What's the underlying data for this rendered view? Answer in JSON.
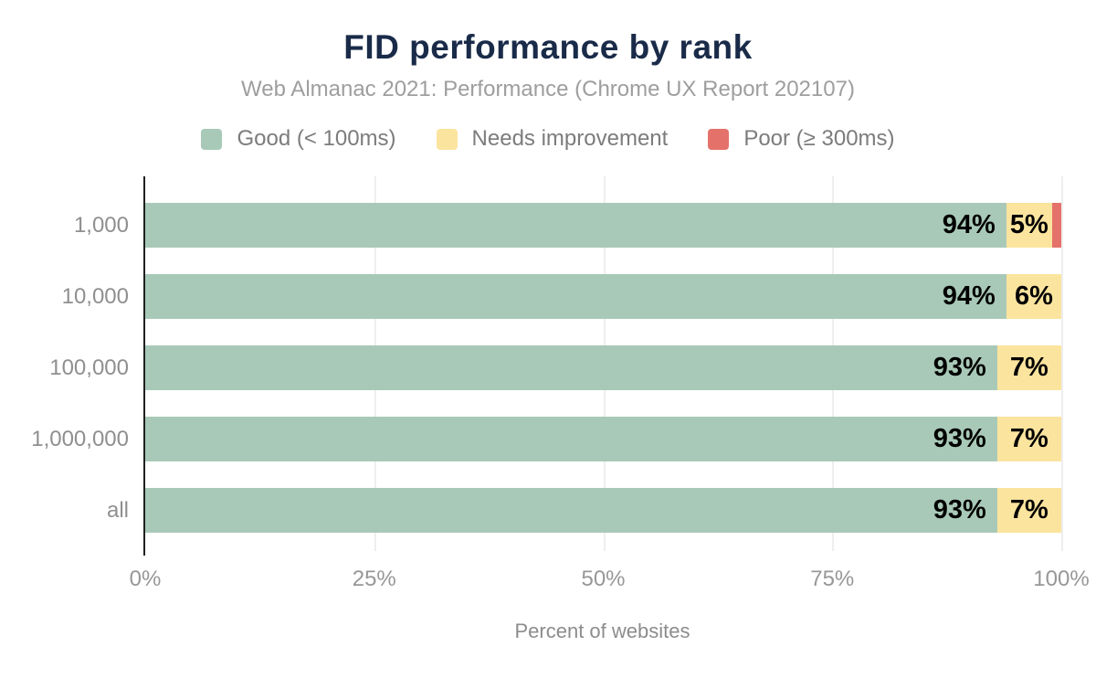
{
  "header": {
    "title": "FID performance by rank",
    "subtitle": "Web Almanac 2021: Performance (Chrome UX Report 202107)"
  },
  "colors": {
    "good": "#a9c9b8",
    "needs_improvement": "#fbe49e",
    "poor": "#e4726a",
    "title": "#1a2b49",
    "axis_line": "#1f1f1f",
    "gridline": "#eeeeee"
  },
  "chart_data": {
    "type": "bar",
    "stacked": true,
    "orientation": "horizontal",
    "title": "FID performance by rank",
    "subtitle": "Web Almanac 2021: Performance (Chrome UX Report 202107)",
    "xlabel": "Percent of websites",
    "ylabel": "",
    "categories": [
      "1,000",
      "10,000",
      "100,000",
      "1,000,000",
      "all"
    ],
    "series": [
      {
        "name": "Good (< 100ms)",
        "color": "#a9c9b8",
        "values": [
          94,
          94,
          93,
          93,
          93
        ],
        "labels": [
          "94%",
          "94%",
          "93%",
          "93%",
          "93%"
        ],
        "label_position": "inside-end"
      },
      {
        "name": "Needs improvement",
        "color": "#fbe49e",
        "values": [
          5,
          6,
          7,
          7,
          7
        ],
        "labels": [
          "5%",
          "6%",
          "7%",
          "7%",
          "7%"
        ],
        "label_position": "inside-center"
      },
      {
        "name": "Poor (≥ 300ms)",
        "color": "#e4726a",
        "values": [
          1,
          0,
          0,
          0,
          0
        ],
        "labels": [
          "",
          "",
          "",
          "",
          ""
        ],
        "label_position": "none"
      }
    ],
    "xlim": [
      0,
      100
    ],
    "xticks": [
      {
        "value": 0,
        "label": "0%"
      },
      {
        "value": 25,
        "label": "25%"
      },
      {
        "value": 50,
        "label": "50%"
      },
      {
        "value": 75,
        "label": "75%"
      },
      {
        "value": 100,
        "label": "100%"
      }
    ],
    "grid": true,
    "legend_position": "top"
  }
}
